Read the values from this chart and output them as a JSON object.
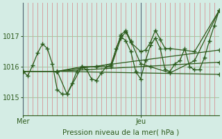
{
  "bg_color": "#d4ece4",
  "line_color": "#2d5a1b",
  "vgrid_color": "#d4a0a0",
  "hgrid_color": "#a8c8a8",
  "xlabel": "Pression niveau de la mer( hPa )",
  "yticks": [
    1015,
    1016,
    1017
  ],
  "ylim": [
    1014.4,
    1018.1
  ],
  "xlim": [
    0,
    40
  ],
  "mer_x": 0,
  "jeu_x": 24,
  "marker": "+",
  "markersize": 5,
  "linewidth": 0.9,
  "series": [
    [
      0,
      1015.85,
      1,
      1015.7,
      2,
      1016.05,
      3,
      1016.45,
      4,
      1016.75,
      5,
      1016.6,
      6,
      1016.1,
      7,
      1015.25,
      8,
      1015.1,
      9,
      1015.1,
      10,
      1015.45,
      11,
      1015.85,
      12,
      1016.0,
      13,
      1015.9,
      14,
      1015.6,
      15,
      1015.55,
      16,
      1015.8,
      17,
      1016.0,
      18,
      1016.05,
      19,
      1016.6,
      20,
      1017.0,
      21,
      1016.85,
      22,
      1016.5,
      23,
      1015.85,
      24,
      1015.6,
      25,
      1016.2,
      26,
      1016.7,
      27,
      1016.95,
      28,
      1016.6,
      29,
      1015.9,
      30,
      1015.85,
      31,
      1016.1,
      32,
      1016.2,
      33,
      1016.6,
      34,
      1016.0,
      35,
      1015.9,
      36,
      1015.9,
      37,
      1016.3,
      38,
      1016.85,
      39,
      1017.35,
      40,
      1017.85
    ],
    [
      0,
      1015.85,
      7,
      1015.85,
      12,
      1016.0,
      15,
      1016.0,
      18,
      1016.0,
      20,
      1016.95,
      21,
      1017.15,
      22,
      1016.8,
      24,
      1016.5,
      25,
      1016.55,
      26,
      1016.8,
      27,
      1017.2,
      28,
      1016.9,
      29,
      1016.6,
      30,
      1016.6,
      35,
      1016.5,
      40,
      1017.85
    ],
    [
      0,
      1015.85,
      7,
      1015.85,
      9,
      1015.1,
      12,
      1016.0,
      15,
      1016.0,
      18,
      1016.1,
      20,
      1017.05,
      21,
      1017.2,
      22,
      1016.85,
      24,
      1016.1,
      26,
      1016.0,
      30,
      1015.8,
      35,
      1016.2,
      40,
      1017.85
    ],
    [
      0,
      1015.85,
      7,
      1015.85,
      40,
      1016.55
    ],
    [
      0,
      1015.85,
      7,
      1015.85,
      40,
      1016.15
    ],
    [
      0,
      1015.85,
      7,
      1015.85,
      40,
      1015.75
    ]
  ],
  "jeu_line_color": "#556677"
}
